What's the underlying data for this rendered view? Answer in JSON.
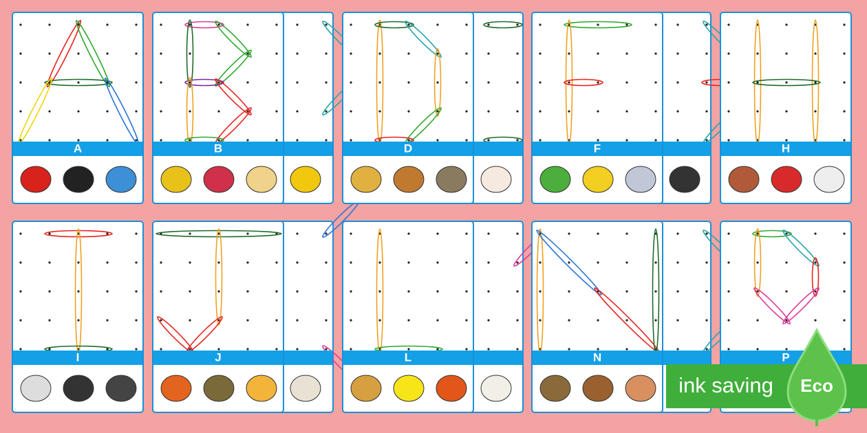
{
  "top_row": {
    "cards": [
      {
        "label": "A"
      },
      {
        "label": "B"
      },
      {
        "label": "D"
      },
      {
        "label": "F"
      },
      {
        "label": "H"
      }
    ]
  },
  "bottom_row": {
    "cards": [
      {
        "label": "I"
      },
      {
        "label": "J"
      },
      {
        "label": "L"
      },
      {
        "label": "N"
      },
      {
        "label": "P"
      }
    ]
  },
  "badge": {
    "text": "ink saving",
    "logo": "Eco"
  }
}
